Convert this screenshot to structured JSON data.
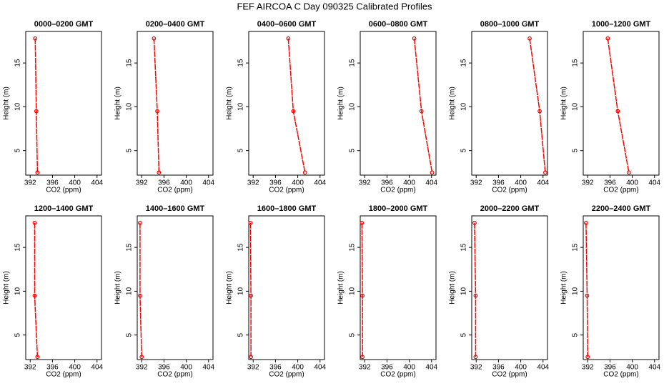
{
  "title": "FEF AIRCOA C  Day 090325  Calibrated Profiles",
  "chart_data": [
    {
      "type": "line",
      "title": "0000–0200 GMT",
      "xlabel": "CO2 (ppm)",
      "ylabel": "Height (m)",
      "color": "#ff0000",
      "x": [
        392.9,
        393.1,
        393.3
      ],
      "values": [
        17.8,
        9.5,
        2.5
      ],
      "xlim": [
        391.2,
        404.8
      ],
      "ylim": [
        2.2,
        18.6
      ],
      "xticks": [
        392,
        396,
        400,
        404
      ],
      "yticks": [
        5,
        10,
        15
      ]
    },
    {
      "type": "line",
      "title": "0200–0400 GMT",
      "xlabel": "CO2 (ppm)",
      "ylabel": "Height (m)",
      "color": "#ff0000",
      "x": [
        394.2,
        394.8,
        395.1
      ],
      "values": [
        17.8,
        9.5,
        2.5
      ],
      "xlim": [
        391.2,
        404.8
      ],
      "ylim": [
        2.2,
        18.6
      ],
      "xticks": [
        392,
        396,
        400,
        404
      ],
      "yticks": [
        5,
        10,
        15
      ]
    },
    {
      "type": "line",
      "title": "0400–0600 GMT",
      "xlabel": "CO2 (ppm)",
      "ylabel": "Height (m)",
      "color": "#ff0000",
      "x": [
        398.3,
        399.2,
        401.3
      ],
      "values": [
        17.8,
        9.5,
        2.5
      ],
      "xlim": [
        391.2,
        404.8
      ],
      "ylim": [
        2.2,
        18.6
      ],
      "xticks": [
        392,
        396,
        400,
        404
      ],
      "yticks": [
        5,
        10,
        15
      ]
    },
    {
      "type": "line",
      "title": "0600–0800 GMT",
      "xlabel": "CO2 (ppm)",
      "ylabel": "Height (m)",
      "color": "#ff0000",
      "x": [
        400.9,
        402.2,
        404.1
      ],
      "values": [
        17.8,
        9.5,
        2.5
      ],
      "xlim": [
        391.2,
        404.8
      ],
      "ylim": [
        2.2,
        18.6
      ],
      "xticks": [
        392,
        396,
        400,
        404
      ],
      "yticks": [
        5,
        10,
        15
      ]
    },
    {
      "type": "line",
      "title": "0800–1000 GMT",
      "xlabel": "CO2 (ppm)",
      "ylabel": "Height (m)",
      "color": "#ff0000",
      "x": [
        401.6,
        403.4,
        404.4
      ],
      "values": [
        17.8,
        9.5,
        2.5
      ],
      "xlim": [
        391.2,
        404.8
      ],
      "ylim": [
        2.2,
        18.6
      ],
      "xticks": [
        392,
        396,
        400,
        404
      ],
      "yticks": [
        5,
        10,
        15
      ]
    },
    {
      "type": "line",
      "title": "1000–1200 GMT",
      "xlabel": "CO2 (ppm)",
      "ylabel": "Height (m)",
      "color": "#ff0000",
      "x": [
        395.6,
        397.4,
        399.4
      ],
      "values": [
        17.8,
        9.5,
        2.5
      ],
      "xlim": [
        391.2,
        404.8
      ],
      "ylim": [
        2.2,
        18.6
      ],
      "xticks": [
        392,
        396,
        400,
        404
      ],
      "yticks": [
        5,
        10,
        15
      ]
    },
    {
      "type": "line",
      "title": "1200–1400 GMT",
      "xlabel": "CO2 (ppm)",
      "ylabel": "Height (m)",
      "color": "#ff0000",
      "x": [
        392.8,
        392.8,
        393.3
      ],
      "values": [
        17.8,
        9.5,
        2.5
      ],
      "xlim": [
        391.2,
        404.8
      ],
      "ylim": [
        2.2,
        18.6
      ],
      "xticks": [
        392,
        396,
        400,
        404
      ],
      "yticks": [
        5,
        10,
        15
      ]
    },
    {
      "type": "line",
      "title": "1400–1600 GMT",
      "xlabel": "CO2 (ppm)",
      "ylabel": "Height (m)",
      "color": "#ff0000",
      "x": [
        391.7,
        391.7,
        392.0
      ],
      "values": [
        17.8,
        9.5,
        2.5
      ],
      "xlim": [
        391.2,
        404.8
      ],
      "ylim": [
        2.2,
        18.6
      ],
      "xticks": [
        392,
        396,
        400,
        404
      ],
      "yticks": [
        5,
        10,
        15
      ]
    },
    {
      "type": "line",
      "title": "1600–1800 GMT",
      "xlabel": "CO2 (ppm)",
      "ylabel": "Height (m)",
      "color": "#ff0000",
      "x": [
        391.5,
        391.6,
        391.6
      ],
      "values": [
        17.8,
        9.5,
        2.5
      ],
      "xlim": [
        391.2,
        404.8
      ],
      "ylim": [
        2.2,
        18.6
      ],
      "xticks": [
        392,
        396,
        400,
        404
      ],
      "yticks": [
        5,
        10,
        15
      ]
    },
    {
      "type": "line",
      "title": "1800–2000 GMT",
      "xlabel": "CO2 (ppm)",
      "ylabel": "Height (m)",
      "color": "#ff0000",
      "x": [
        391.5,
        391.6,
        391.6
      ],
      "values": [
        17.8,
        9.5,
        2.5
      ],
      "xlim": [
        391.2,
        404.8
      ],
      "ylim": [
        2.2,
        18.6
      ],
      "xticks": [
        392,
        396,
        400,
        404
      ],
      "yticks": [
        5,
        10,
        15
      ]
    },
    {
      "type": "line",
      "title": "2000–2200 GMT",
      "xlabel": "CO2 (ppm)",
      "ylabel": "Height (m)",
      "color": "#ff0000",
      "x": [
        391.7,
        391.9,
        391.9
      ],
      "values": [
        17.8,
        9.5,
        2.5
      ],
      "xlim": [
        391.2,
        404.8
      ],
      "ylim": [
        2.2,
        18.6
      ],
      "xticks": [
        392,
        396,
        400,
        404
      ],
      "yticks": [
        5,
        10,
        15
      ]
    },
    {
      "type": "line",
      "title": "2200–2400 GMT",
      "xlabel": "CO2 (ppm)",
      "ylabel": "Height (m)",
      "color": "#ff0000",
      "x": [
        391.7,
        391.9,
        392.0
      ],
      "values": [
        17.8,
        9.5,
        2.5
      ],
      "xlim": [
        391.2,
        404.8
      ],
      "ylim": [
        2.2,
        18.6
      ],
      "xticks": [
        392,
        396,
        400,
        404
      ],
      "yticks": [
        5,
        10,
        15
      ]
    }
  ]
}
